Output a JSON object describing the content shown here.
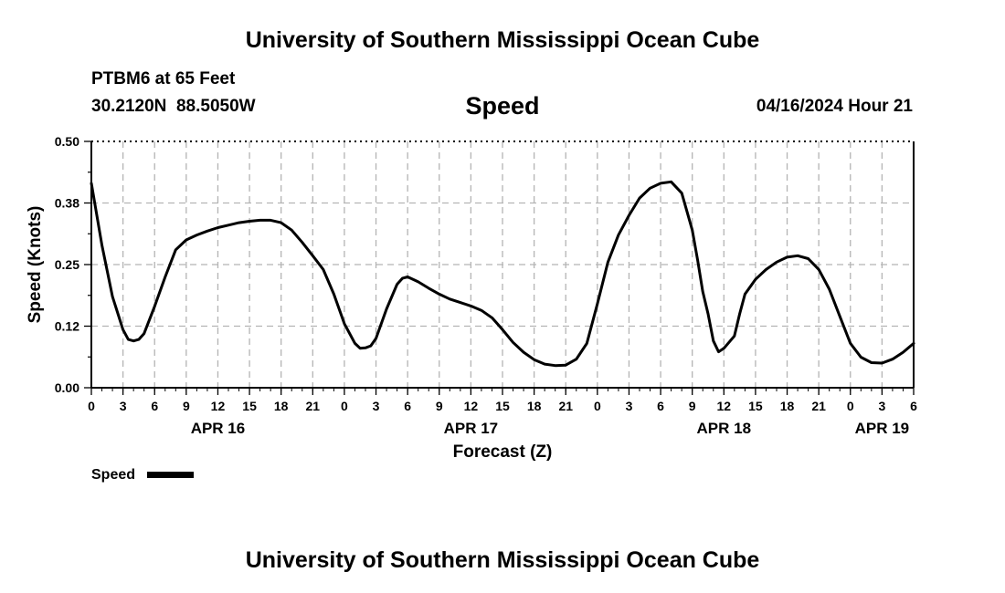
{
  "header": {
    "title": "University of Southern Mississippi Ocean Cube",
    "station": "PTBM6 at 65 Feet",
    "coords": "30.2120N  88.5050W",
    "variable": "Speed",
    "datetime": "04/16/2024 Hour 21"
  },
  "footer": {
    "title": "University of Southern Mississippi Ocean Cube"
  },
  "chart_data": {
    "type": "line",
    "title": "Speed",
    "xlabel": "Forecast (Z)",
    "ylabel": "Speed (Knots)",
    "xlim": [
      0,
      78
    ],
    "ylim": [
      0,
      0.5
    ],
    "grid": true,
    "yticks": [
      {
        "value": 0.0,
        "label": "0.00"
      },
      {
        "value": 0.125,
        "label": "0.12"
      },
      {
        "value": 0.25,
        "label": "0.25"
      },
      {
        "value": 0.375,
        "label": "0.38"
      },
      {
        "value": 0.5,
        "label": "0.50"
      }
    ],
    "xticks": [
      "0",
      "3",
      "6",
      "9",
      "12",
      "15",
      "18",
      "21",
      "0",
      "3",
      "6",
      "9",
      "12",
      "15",
      "18",
      "21",
      "0",
      "3",
      "6",
      "9",
      "12",
      "15",
      "18",
      "21",
      "0",
      "3",
      "6"
    ],
    "day_labels": [
      {
        "hour": 12,
        "label": "APR 16"
      },
      {
        "hour": 36,
        "label": "APR 17"
      },
      {
        "hour": 60,
        "label": "APR 18"
      },
      {
        "hour": 75,
        "label": "APR 19"
      }
    ],
    "legend": {
      "label": "Speed",
      "position": "bottom-left"
    },
    "series": [
      {
        "name": "Speed",
        "color": "#000000",
        "x": [
          0,
          1,
          2,
          3,
          3.5,
          4,
          4.5,
          5,
          6,
          7,
          8,
          9,
          10,
          11,
          12,
          13,
          14,
          15,
          16,
          17,
          18,
          19,
          20,
          21,
          22,
          23,
          24,
          25,
          25.5,
          26,
          26.5,
          27,
          28,
          29,
          29.5,
          30,
          31,
          32,
          33,
          34,
          35,
          36,
          37,
          38,
          39,
          40,
          41,
          42,
          43,
          44,
          45,
          46,
          47,
          48,
          49,
          50,
          51,
          52,
          53,
          54,
          55,
          56,
          57,
          57.5,
          58,
          58.5,
          59,
          59.5,
          60,
          61,
          61.5,
          62,
          63,
          64,
          65,
          66,
          67,
          68,
          69,
          70,
          71,
          72,
          73,
          74,
          75,
          76,
          77,
          78
        ],
        "values": [
          0.415,
          0.29,
          0.185,
          0.118,
          0.098,
          0.095,
          0.098,
          0.11,
          0.165,
          0.225,
          0.28,
          0.3,
          0.31,
          0.318,
          0.325,
          0.33,
          0.335,
          0.338,
          0.34,
          0.34,
          0.335,
          0.32,
          0.295,
          0.268,
          0.24,
          0.19,
          0.13,
          0.09,
          0.08,
          0.081,
          0.085,
          0.1,
          0.16,
          0.21,
          0.222,
          0.225,
          0.215,
          0.202,
          0.19,
          0.18,
          0.173,
          0.166,
          0.157,
          0.142,
          0.118,
          0.092,
          0.072,
          0.057,
          0.048,
          0.045,
          0.046,
          0.058,
          0.09,
          0.17,
          0.255,
          0.31,
          0.35,
          0.385,
          0.405,
          0.415,
          0.418,
          0.395,
          0.32,
          0.26,
          0.195,
          0.15,
          0.095,
          0.073,
          0.08,
          0.105,
          0.15,
          0.19,
          0.22,
          0.24,
          0.255,
          0.265,
          0.268,
          0.262,
          0.24,
          0.2,
          0.145,
          0.09,
          0.062,
          0.051,
          0.05,
          0.058,
          0.072,
          0.09
        ]
      }
    ]
  }
}
